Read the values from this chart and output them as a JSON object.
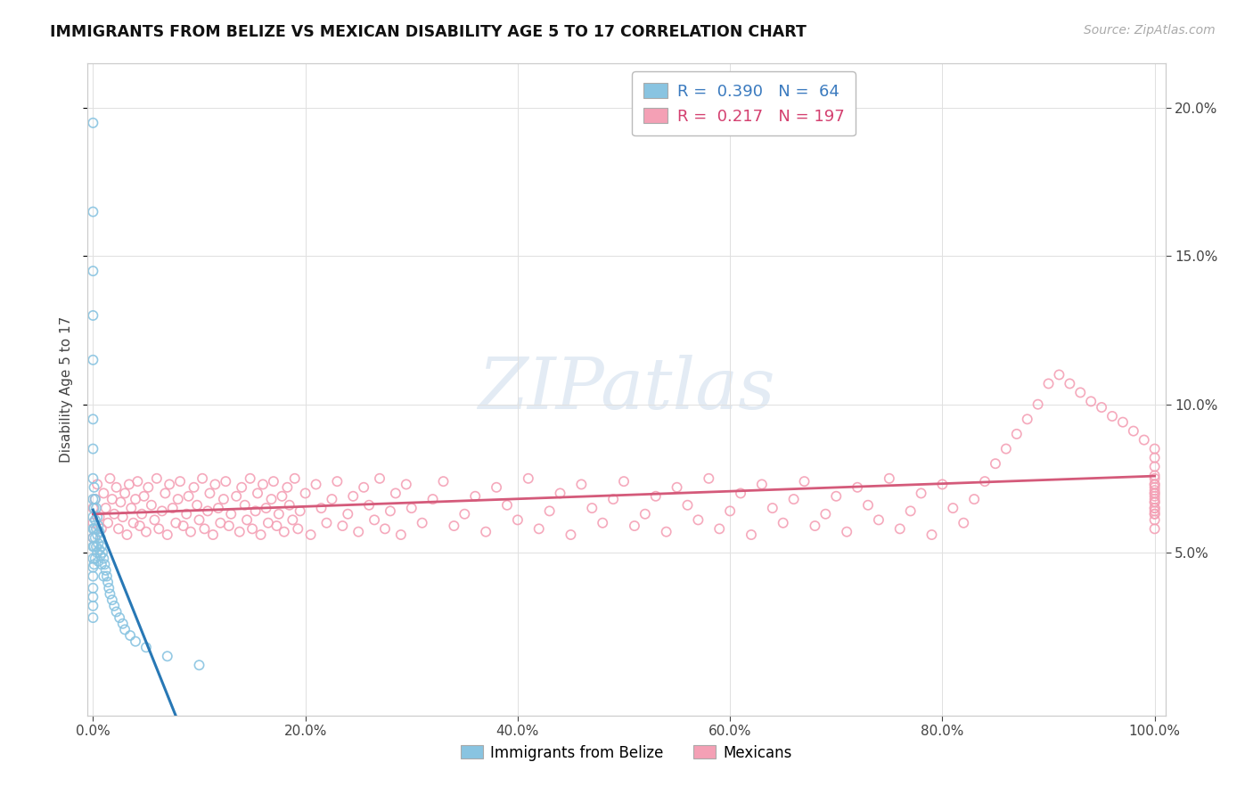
{
  "title": "IMMIGRANTS FROM BELIZE VS MEXICAN DISABILITY AGE 5 TO 17 CORRELATION CHART",
  "source": "Source: ZipAtlas.com",
  "ylabel_label": "Disability Age 5 to 17",
  "belize_R": 0.39,
  "belize_N": 64,
  "mexican_R": 0.217,
  "mexican_N": 197,
  "belize_color": "#89c4e1",
  "mexican_color": "#f4a0b5",
  "belize_line_color": "#2878b5",
  "mexican_line_color": "#d45a7a",
  "xlim": [
    -0.005,
    1.01
  ],
  "ylim": [
    -0.005,
    0.215
  ],
  "x_ticks": [
    0.0,
    0.2,
    0.4,
    0.6,
    0.8,
    1.0
  ],
  "y_ticks": [
    0.05,
    0.1,
    0.15,
    0.2
  ],
  "background_color": "#ffffff",
  "grid_color": "#e0e0e0",
  "watermark": "ZIPatlas",
  "belize_x": [
    0.0,
    0.0,
    0.0,
    0.0,
    0.0,
    0.0,
    0.0,
    0.0,
    0.0,
    0.0,
    0.0,
    0.0,
    0.0,
    0.0,
    0.0,
    0.0,
    0.0,
    0.0,
    0.0,
    0.0,
    0.001,
    0.001,
    0.001,
    0.001,
    0.001,
    0.002,
    0.002,
    0.002,
    0.002,
    0.003,
    0.003,
    0.003,
    0.004,
    0.004,
    0.004,
    0.005,
    0.005,
    0.005,
    0.006,
    0.006,
    0.007,
    0.007,
    0.008,
    0.008,
    0.009,
    0.01,
    0.01,
    0.011,
    0.012,
    0.013,
    0.014,
    0.015,
    0.016,
    0.018,
    0.02,
    0.022,
    0.025,
    0.028,
    0.03,
    0.035,
    0.04,
    0.05,
    0.07,
    0.1
  ],
  "belize_y": [
    0.195,
    0.165,
    0.145,
    0.13,
    0.115,
    0.095,
    0.085,
    0.075,
    0.068,
    0.062,
    0.058,
    0.055,
    0.052,
    0.048,
    0.045,
    0.042,
    0.038,
    0.035,
    0.032,
    0.028,
    0.072,
    0.065,
    0.058,
    0.052,
    0.046,
    0.068,
    0.061,
    0.055,
    0.048,
    0.065,
    0.058,
    0.052,
    0.062,
    0.056,
    0.05,
    0.059,
    0.053,
    0.047,
    0.057,
    0.051,
    0.055,
    0.049,
    0.052,
    0.046,
    0.05,
    0.048,
    0.042,
    0.046,
    0.044,
    0.042,
    0.04,
    0.038,
    0.036,
    0.034,
    0.032,
    0.03,
    0.028,
    0.026,
    0.024,
    0.022,
    0.02,
    0.018,
    0.015,
    0.012
  ],
  "mexican_x": [
    0.0,
    0.0,
    0.0,
    0.002,
    0.004,
    0.006,
    0.008,
    0.01,
    0.012,
    0.014,
    0.016,
    0.018,
    0.02,
    0.022,
    0.024,
    0.026,
    0.028,
    0.03,
    0.032,
    0.034,
    0.036,
    0.038,
    0.04,
    0.042,
    0.044,
    0.046,
    0.048,
    0.05,
    0.052,
    0.055,
    0.058,
    0.06,
    0.062,
    0.065,
    0.068,
    0.07,
    0.072,
    0.075,
    0.078,
    0.08,
    0.082,
    0.085,
    0.088,
    0.09,
    0.092,
    0.095,
    0.098,
    0.1,
    0.103,
    0.105,
    0.108,
    0.11,
    0.113,
    0.115,
    0.118,
    0.12,
    0.123,
    0.125,
    0.128,
    0.13,
    0.135,
    0.138,
    0.14,
    0.143,
    0.145,
    0.148,
    0.15,
    0.153,
    0.155,
    0.158,
    0.16,
    0.163,
    0.165,
    0.168,
    0.17,
    0.173,
    0.175,
    0.178,
    0.18,
    0.183,
    0.185,
    0.188,
    0.19,
    0.193,
    0.195,
    0.2,
    0.205,
    0.21,
    0.215,
    0.22,
    0.225,
    0.23,
    0.235,
    0.24,
    0.245,
    0.25,
    0.255,
    0.26,
    0.265,
    0.27,
    0.275,
    0.28,
    0.285,
    0.29,
    0.295,
    0.3,
    0.31,
    0.32,
    0.33,
    0.34,
    0.35,
    0.36,
    0.37,
    0.38,
    0.39,
    0.4,
    0.41,
    0.42,
    0.43,
    0.44,
    0.45,
    0.46,
    0.47,
    0.48,
    0.49,
    0.5,
    0.51,
    0.52,
    0.53,
    0.54,
    0.55,
    0.56,
    0.57,
    0.58,
    0.59,
    0.6,
    0.61,
    0.62,
    0.63,
    0.64,
    0.65,
    0.66,
    0.67,
    0.68,
    0.69,
    0.7,
    0.71,
    0.72,
    0.73,
    0.74,
    0.75,
    0.76,
    0.77,
    0.78,
    0.79,
    0.8,
    0.81,
    0.82,
    0.83,
    0.84,
    0.85,
    0.86,
    0.87,
    0.88,
    0.89,
    0.9,
    0.91,
    0.92,
    0.93,
    0.94,
    0.95,
    0.96,
    0.97,
    0.98,
    0.99,
    1.0,
    1.0,
    1.0,
    1.0,
    1.0,
    1.0,
    1.0,
    1.0,
    1.0,
    1.0,
    1.0,
    1.0,
    1.0,
    1.0,
    1.0,
    1.0,
    1.0,
    1.0,
    1.0,
    1.0,
    1.0,
    1.0
  ],
  "mexican_y": [
    0.065,
    0.06,
    0.055,
    0.068,
    0.073,
    0.062,
    0.058,
    0.07,
    0.065,
    0.06,
    0.075,
    0.068,
    0.063,
    0.072,
    0.058,
    0.067,
    0.062,
    0.07,
    0.056,
    0.073,
    0.065,
    0.06,
    0.068,
    0.074,
    0.059,
    0.063,
    0.069,
    0.057,
    0.072,
    0.066,
    0.061,
    0.075,
    0.058,
    0.064,
    0.07,
    0.056,
    0.073,
    0.065,
    0.06,
    0.068,
    0.074,
    0.059,
    0.063,
    0.069,
    0.057,
    0.072,
    0.066,
    0.061,
    0.075,
    0.058,
    0.064,
    0.07,
    0.056,
    0.073,
    0.065,
    0.06,
    0.068,
    0.074,
    0.059,
    0.063,
    0.069,
    0.057,
    0.072,
    0.066,
    0.061,
    0.075,
    0.058,
    0.064,
    0.07,
    0.056,
    0.073,
    0.065,
    0.06,
    0.068,
    0.074,
    0.059,
    0.063,
    0.069,
    0.057,
    0.072,
    0.066,
    0.061,
    0.075,
    0.058,
    0.064,
    0.07,
    0.056,
    0.073,
    0.065,
    0.06,
    0.068,
    0.074,
    0.059,
    0.063,
    0.069,
    0.057,
    0.072,
    0.066,
    0.061,
    0.075,
    0.058,
    0.064,
    0.07,
    0.056,
    0.073,
    0.065,
    0.06,
    0.068,
    0.074,
    0.059,
    0.063,
    0.069,
    0.057,
    0.072,
    0.066,
    0.061,
    0.075,
    0.058,
    0.064,
    0.07,
    0.056,
    0.073,
    0.065,
    0.06,
    0.068,
    0.074,
    0.059,
    0.063,
    0.069,
    0.057,
    0.072,
    0.066,
    0.061,
    0.075,
    0.058,
    0.064,
    0.07,
    0.056,
    0.073,
    0.065,
    0.06,
    0.068,
    0.074,
    0.059,
    0.063,
    0.069,
    0.057,
    0.072,
    0.066,
    0.061,
    0.075,
    0.058,
    0.064,
    0.07,
    0.056,
    0.073,
    0.065,
    0.06,
    0.068,
    0.074,
    0.08,
    0.085,
    0.09,
    0.095,
    0.1,
    0.107,
    0.11,
    0.107,
    0.104,
    0.101,
    0.099,
    0.096,
    0.094,
    0.091,
    0.088,
    0.085,
    0.082,
    0.079,
    0.076,
    0.073,
    0.07,
    0.067,
    0.064,
    0.061,
    0.058,
    0.065,
    0.063,
    0.068,
    0.07,
    0.072,
    0.073,
    0.075,
    0.071,
    0.069,
    0.067,
    0.065,
    0.063
  ]
}
